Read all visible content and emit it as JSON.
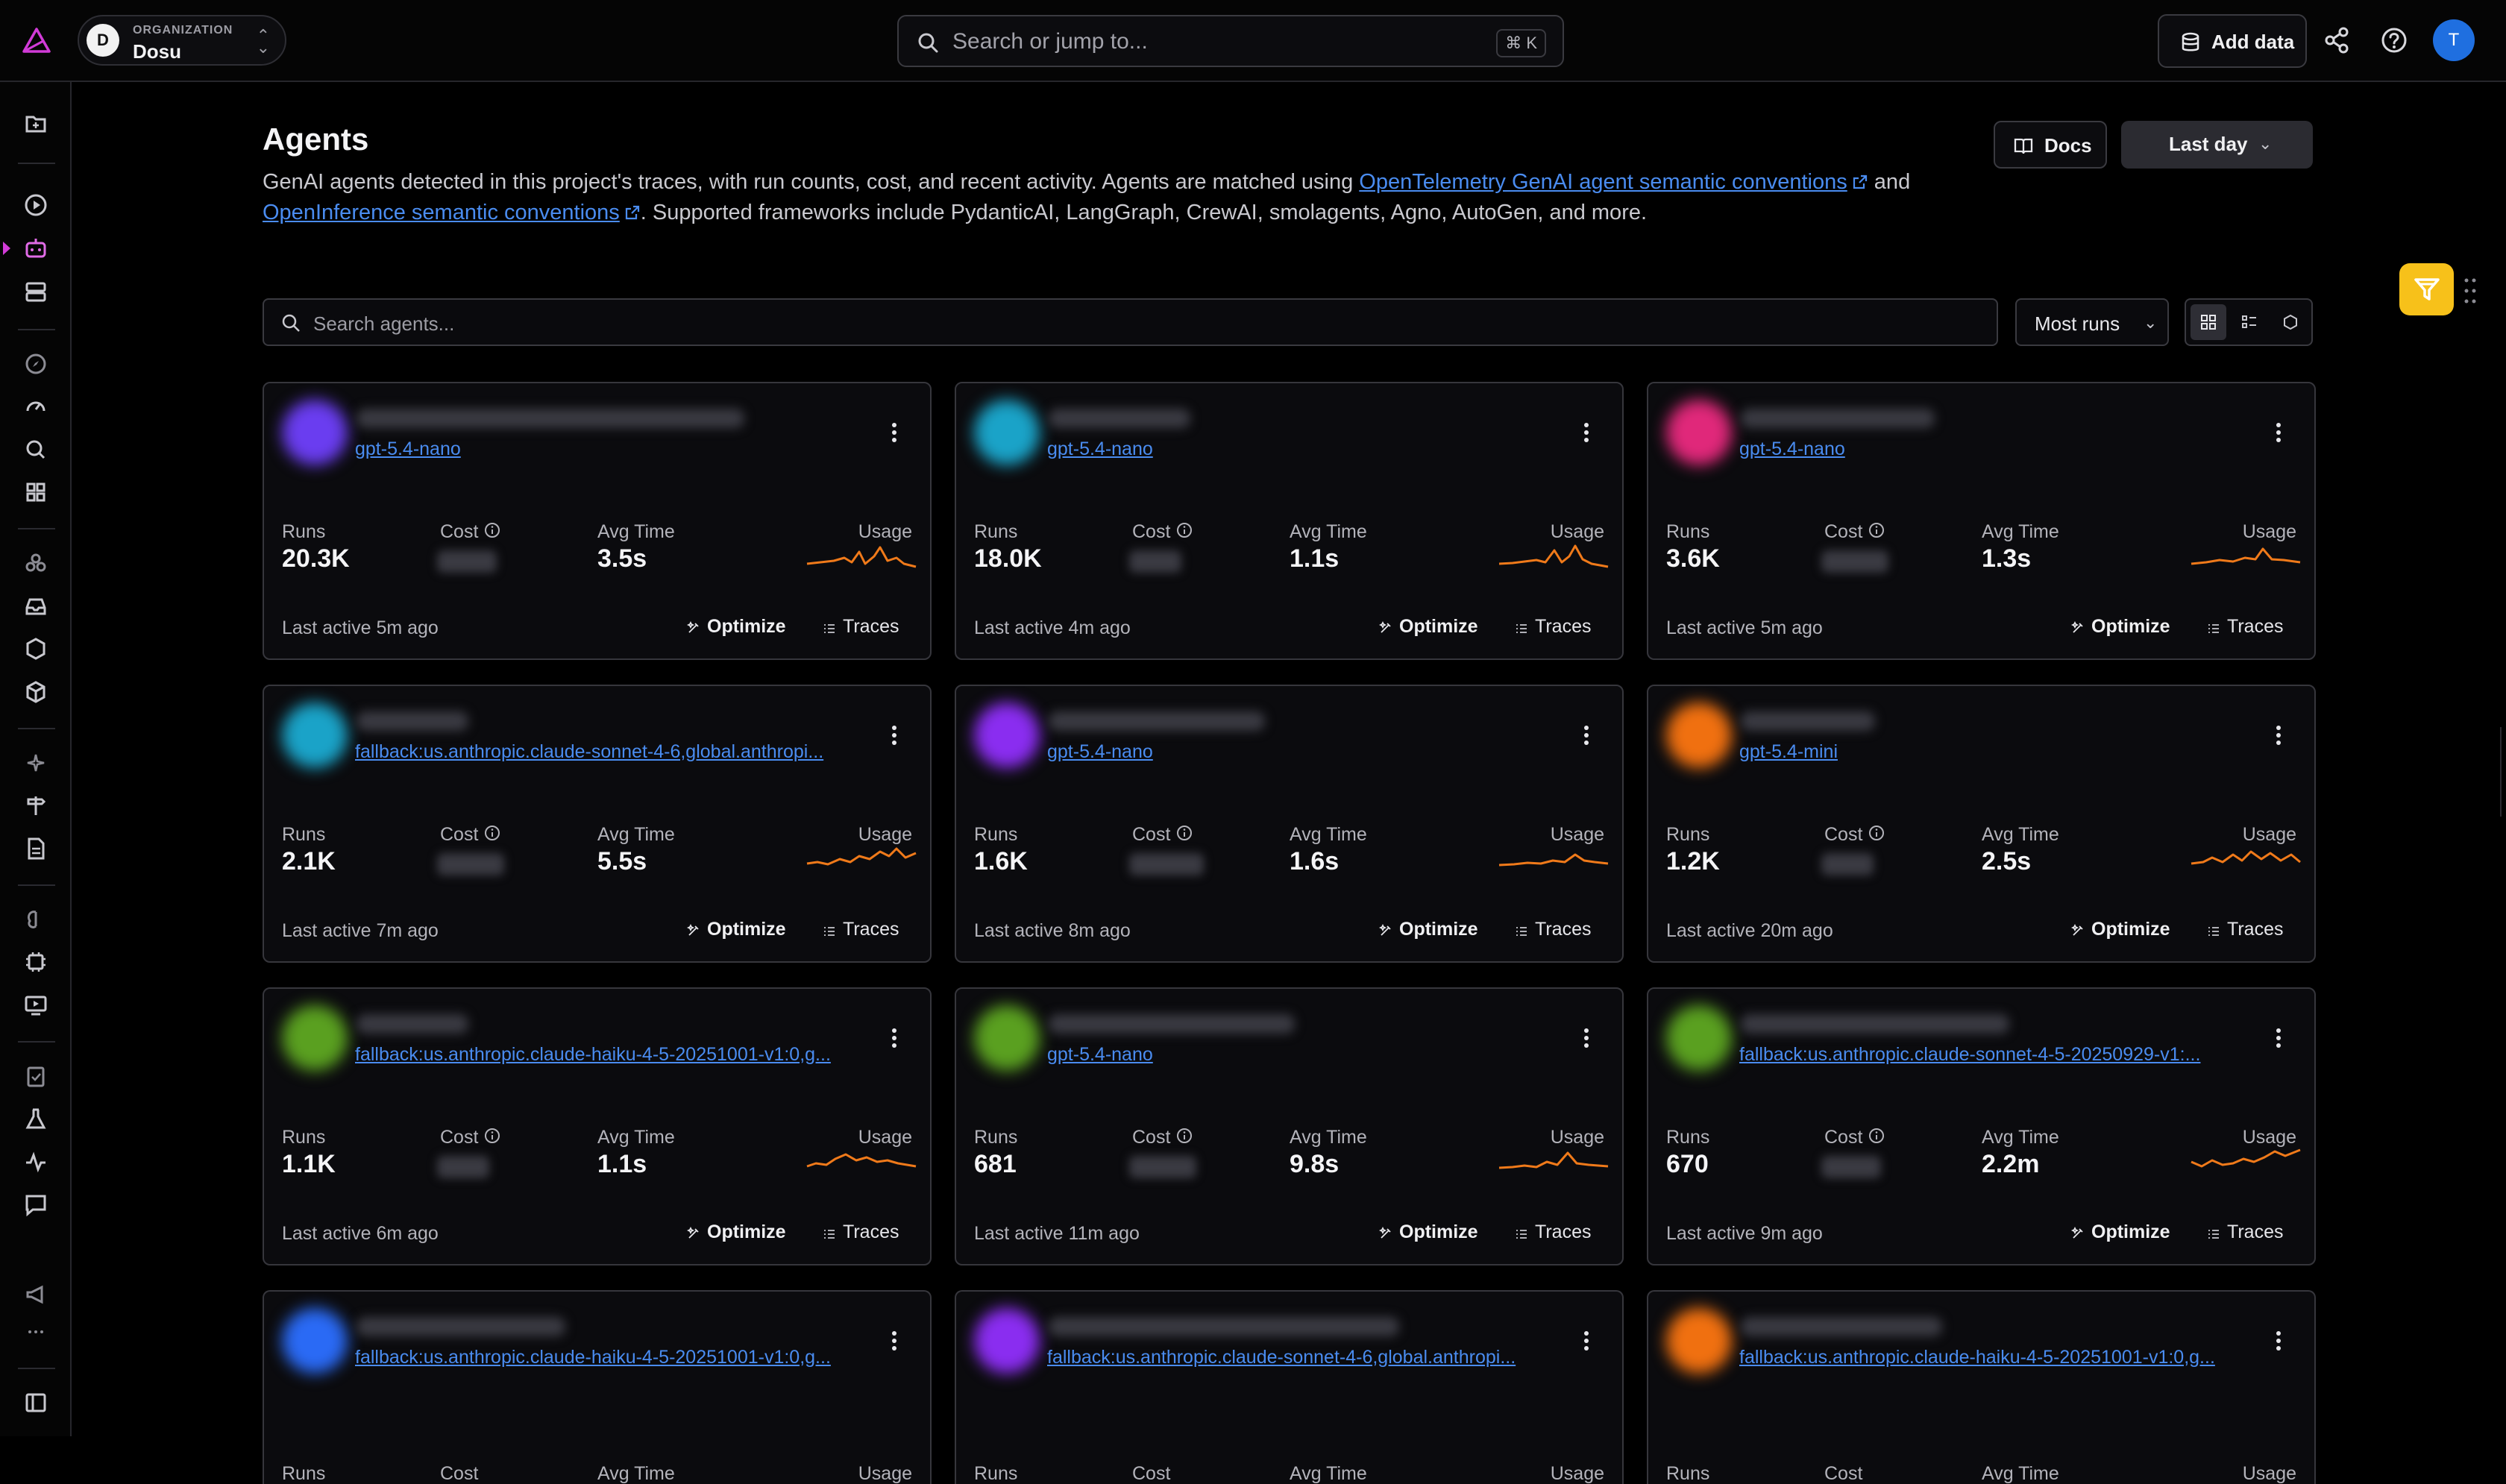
{
  "org": {
    "kicker": "ORGANIZATION",
    "name": "Dosu",
    "avatar_letter": "D"
  },
  "search": {
    "placeholder": "Search or jump to...",
    "shortcut": "⌘ K"
  },
  "header_actions": {
    "add_data": "Add data",
    "user_initial": "T"
  },
  "page": {
    "title": "Agents",
    "desc_part1": "GenAI agents detected in this project's traces, with run counts, cost, and recent activity. Agents are matched using ",
    "link1": "OpenTelemetry GenAI agent semantic conventions",
    "desc_part2": " and ",
    "link2": "OpenInference semantic conventions",
    "desc_part3": ". Supported frameworks include PydanticAI, LangGraph, CrewAI, smolagents, Agno, AutoGen, and more.",
    "docs_label": "Docs",
    "range_label": "Last day"
  },
  "toolbar": {
    "search_placeholder": "Search agents...",
    "sort_label": "Most runs"
  },
  "labels": {
    "runs": "Runs",
    "cost": "Cost",
    "avg_time": "Avg Time",
    "usage": "Usage",
    "optimize": "Optimize",
    "traces": "Traces"
  },
  "colors": {
    "accent_link": "#4a8cf0",
    "sparkline": "#f07a1a",
    "fab": "#f7c11a",
    "logo": "#d23bd8"
  },
  "cards": [
    {
      "model": "gpt-5.4-nano",
      "runs": "20.3K",
      "avg_time": "3.5s",
      "last_active": "Last active 5m ago",
      "color": "#6a3df0"
    },
    {
      "model": "gpt-5.4-nano",
      "runs": "18.0K",
      "avg_time": "1.1s",
      "last_active": "Last active 4m ago",
      "color": "#1aa3c8"
    },
    {
      "model": "gpt-5.4-nano",
      "runs": "3.6K",
      "avg_time": "1.3s",
      "last_active": "Last active 5m ago",
      "color": "#e0287a"
    },
    {
      "model": "fallback:us.anthropic.claude-sonnet-4-6,global.anthropi...",
      "runs": "2.1K",
      "avg_time": "5.5s",
      "last_active": "Last active 7m ago",
      "color": "#1aa3c8"
    },
    {
      "model": "gpt-5.4-nano",
      "runs": "1.6K",
      "avg_time": "1.6s",
      "last_active": "Last active 8m ago",
      "color": "#8a2df0"
    },
    {
      "model": "gpt-5.4-mini",
      "runs": "1.2K",
      "avg_time": "2.5s",
      "last_active": "Last active 20m ago",
      "color": "#f07010"
    },
    {
      "model": "fallback:us.anthropic.claude-haiku-4-5-20251001-v1:0,g...",
      "runs": "1.1K",
      "avg_time": "1.1s",
      "last_active": "Last active 6m ago",
      "color": "#5aa020"
    },
    {
      "model": "gpt-5.4-nano",
      "runs": "681",
      "avg_time": "9.8s",
      "last_active": "Last active 11m ago",
      "color": "#5aa020"
    },
    {
      "model": "fallback:us.anthropic.claude-sonnet-4-5-20250929-v1:...",
      "runs": "670",
      "avg_time": "2.2m",
      "last_active": "Last active 9m ago",
      "color": "#5aa020"
    },
    {
      "model": "fallback:us.anthropic.claude-haiku-4-5-20251001-v1:0,g...",
      "color": "#2a6af5"
    },
    {
      "model": "fallback:us.anthropic.claude-sonnet-4-6,global.anthropi...",
      "color": "#8a2df0"
    },
    {
      "model": "fallback:us.anthropic.claude-haiku-4-5-20251001-v1:0,g...",
      "color": "#f07010"
    }
  ]
}
